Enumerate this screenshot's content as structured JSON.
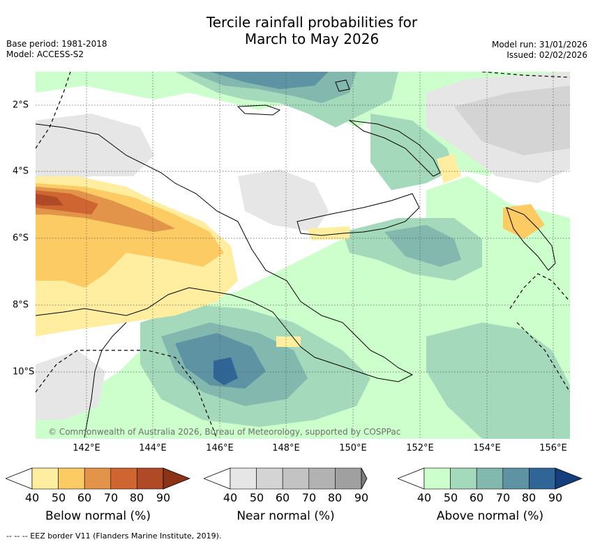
{
  "title_line1": "Tercile rainfall probabilities for",
  "title_line2": "March to May 2026",
  "base_period": "Base period: 1981-2018",
  "model": "Model: ACCESS-S2",
  "model_run": "Model run: 31/01/2026",
  "issued": "Issued: 02/02/2026",
  "x_ticks": [
    "142°E",
    "144°E",
    "146°E",
    "148°E",
    "150°E",
    "152°E",
    "154°E",
    "156°E"
  ],
  "y_ticks": [
    "2°S",
    "4°S",
    "6°S",
    "8°S",
    "10°S"
  ],
  "copyright": "© Commonwealth of Australia 2026, Bureau of Meteorology, supported by COSPPac",
  "colorbars": [
    {
      "label": "Below normal (%)",
      "ticks": [
        "40",
        "50",
        "60",
        "70",
        "80",
        "90"
      ],
      "colors": [
        "#ffeea0",
        "#fdcb64",
        "#e1944a",
        "#cf6530",
        "#b04a26",
        "#8b3217"
      ]
    },
    {
      "label": "Near normal (%)",
      "ticks": [
        "40",
        "50",
        "60",
        "70",
        "80",
        "90"
      ],
      "colors": [
        "#e6e6e6",
        "#d4d4d4",
        "#c3c3c3",
        "#b2b2b2",
        "#a0a0a0",
        "#7c7c7c"
      ]
    },
    {
      "label": "Above normal (%)",
      "ticks": [
        "40",
        "50",
        "60",
        "70",
        "80",
        "90"
      ],
      "colors": [
        "#ccffcc",
        "#a5d9bb",
        "#82b8ae",
        "#5d93a2",
        "#2f6597",
        "#143f7c"
      ]
    }
  ],
  "eez_note": "-- -- -- EEZ border V11 (Flanders Marine Institute, 2019).",
  "colors": {
    "white": "#ffffff",
    "grey1": "#e6e6e6",
    "grey2": "#d4d4d4",
    "green1": "#ccffcc",
    "green2": "#a5d9bb",
    "green3": "#82b8ae",
    "green4": "#5d93a2",
    "green5": "#2f6597",
    "yellow1": "#ffeea0",
    "yellow2": "#fdcb64",
    "orange": "#e1944a",
    "orange2": "#cf6530",
    "brown": "#b04a26"
  }
}
